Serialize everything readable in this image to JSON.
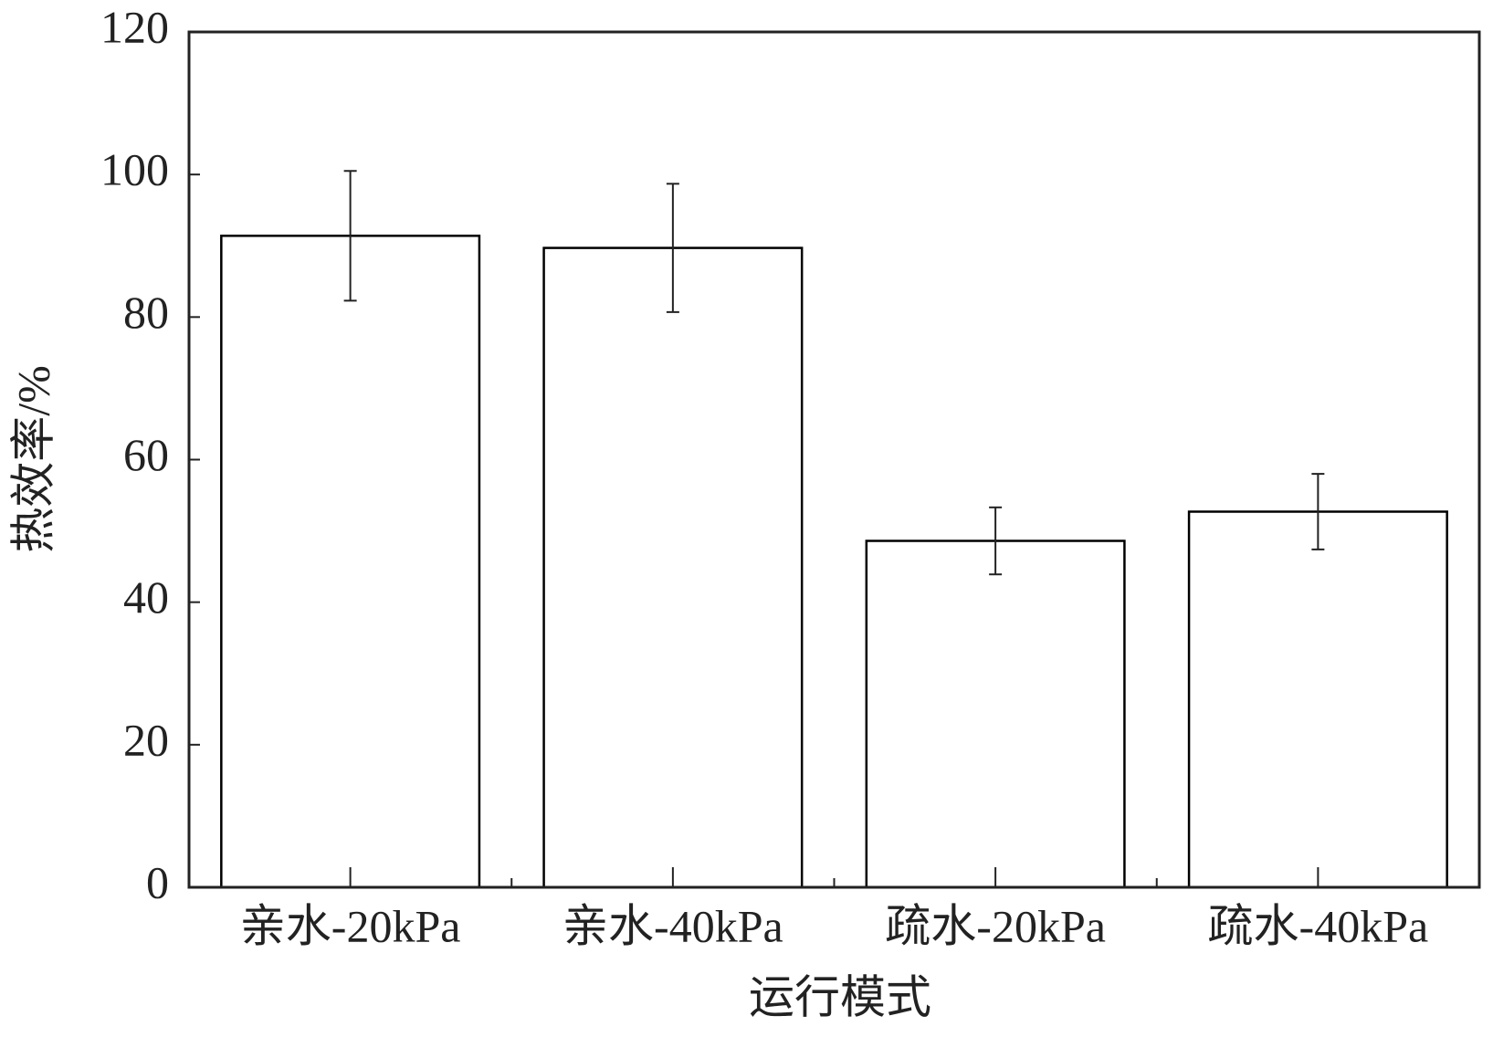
{
  "chart_data": {
    "type": "bar",
    "xlabel": "运行模式",
    "ylabel": "热效率/%",
    "categories": [
      "亲水-20kPa",
      "亲水-40kPa",
      "疏水-20kPa",
      "疏水-40kPa"
    ],
    "values": [
      91.4,
      89.7,
      48.6,
      52.7
    ],
    "errors": [
      9.1,
      9.0,
      4.7,
      5.3
    ],
    "color": "#ffffff",
    "edgecolor": "#000000",
    "ylim": [
      0,
      120
    ],
    "yticks": [
      0,
      20,
      40,
      60,
      80,
      100,
      120
    ],
    "grid": false
  }
}
